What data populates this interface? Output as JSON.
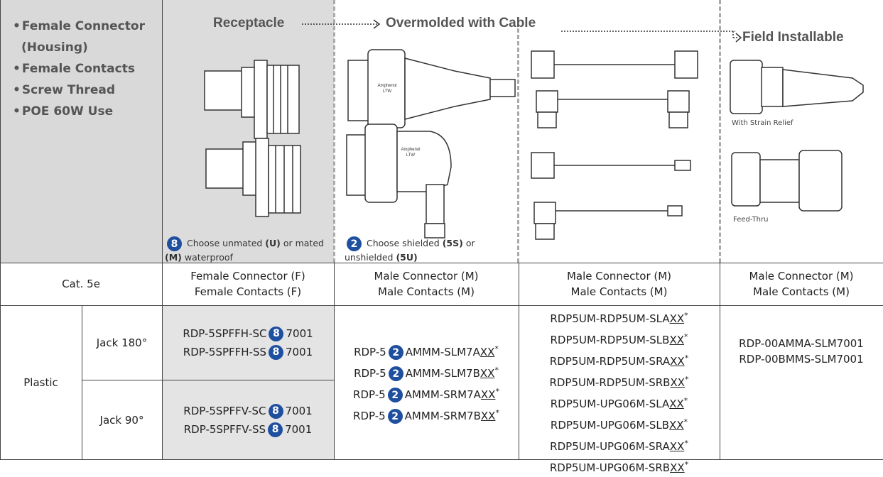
{
  "features": [
    "Female Connector (Housing)",
    "Female Contacts",
    "Screw Thread",
    "POE 60W Use"
  ],
  "sections": {
    "receptacle": "Receptacle",
    "overmolded": "Overmolded with Cable",
    "field": "Field Installable"
  },
  "image_labels": {
    "strain_relief": "With Strain Relief",
    "feed_thru": "Feed-Thru",
    "logo": [
      "Amphenol",
      "LTW"
    ]
  },
  "notes": [
    {
      "badge": "8",
      "runs": [
        {
          "text": "Choose unmated "
        },
        {
          "text": "(U)",
          "bold": true
        },
        {
          "text": " or mated "
        },
        {
          "text": "(M)",
          "bold": true
        },
        {
          "text": " waterproof"
        }
      ]
    },
    {
      "badge": "2",
      "runs": [
        {
          "text": "Choose shielded "
        },
        {
          "text": "(5S)",
          "bold": true
        },
        {
          "text": " or unshielded "
        },
        {
          "text": "(5U)",
          "bold": true
        }
      ]
    }
  ],
  "table": {
    "category": "Cat. 5e",
    "column_headers": [
      [
        "Female Connector (F)",
        "Female Contacts (F)"
      ],
      [
        "Male Connector (M)",
        "Male Contacts (M)"
      ],
      [
        "Male Connector (M)",
        "Male Contacts (M)"
      ],
      [
        "Male Connector (M)",
        "Male Contacts (M)"
      ]
    ],
    "material": "Plastic",
    "rows": [
      {
        "label": "Jack 180°",
        "parts": [
          {
            "text": "RDP-5SPFFH-SC",
            "badge": "8",
            "tail": "7001"
          },
          {
            "text": "RDP-5SPFFH-SS",
            "badge": "8",
            "tail": "7001"
          }
        ]
      },
      {
        "label": "Jack 90°",
        "parts": [
          {
            "text": "RDP-5SPFFV-SC",
            "badge": "8",
            "tail": "7001"
          },
          {
            "text": "RDP-5SPFFV-SS",
            "badge": "8",
            "tail": "7001"
          }
        ]
      }
    ],
    "overmolded_parts": [
      {
        "text": "RDP-5",
        "badge": "2",
        "tail": "AMMM-SLM7A",
        "var": "XX",
        "mark": "*"
      },
      {
        "text": "RDP-5",
        "badge": "2",
        "tail": "AMMM-SLM7B",
        "var": "XX",
        "mark": "*"
      },
      {
        "text": "RDP-5",
        "badge": "2",
        "tail": "AMMM-SRM7A",
        "var": "XX",
        "mark": "*"
      },
      {
        "text": "RDP-5",
        "badge": "2",
        "tail": "AMMM-SRM7B",
        "var": "XX",
        "mark": "*"
      }
    ],
    "cable_parts": [
      {
        "text": "RDP5UM-RDP5UM-SLA",
        "var": "XX",
        "mark": "*"
      },
      {
        "text": "RDP5UM-RDP5UM-SLB",
        "var": "XX",
        "mark": "*"
      },
      {
        "text": "RDP5UM-RDP5UM-SRA",
        "var": "XX",
        "mark": "*"
      },
      {
        "text": "RDP5UM-RDP5UM-SRB",
        "var": "XX",
        "mark": "*"
      },
      {
        "text": "RDP5UM-UPG06M-SLA",
        "var": "XX",
        "mark": "*"
      },
      {
        "text": "RDP5UM-UPG06M-SLB",
        "var": "XX",
        "mark": "*"
      },
      {
        "text": "RDP5UM-UPG06M-SRA",
        "var": "XX",
        "mark": "*"
      },
      {
        "text": "RDP5UM-UPG06M-SRB",
        "var": "XX",
        "mark": "*"
      }
    ],
    "field_parts": [
      {
        "text": "RDP-00AMMA-SLM7001"
      },
      {
        "text": "RDP-00BMMS-SLM7001"
      }
    ]
  }
}
